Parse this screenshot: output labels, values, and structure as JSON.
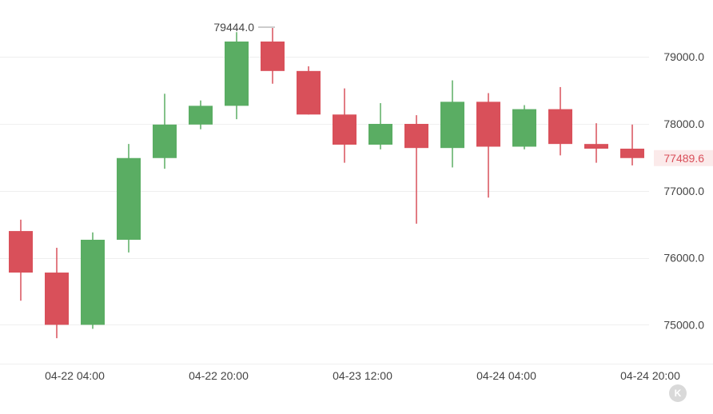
{
  "colors": {
    "up": "#5aad63",
    "down": "#d9505a",
    "grid": "#efefef",
    "axis_text": "#444444",
    "price_tag_text": "#d9505a",
    "price_tag_bg": "#fbeaea",
    "badge": "#d9d9d9"
  },
  "badge_label": "K",
  "chart_data": {
    "type": "candlestick",
    "y_axis_position": "right",
    "y_ticks": [
      "79000.0",
      "78000.0",
      "77000.0",
      "76000.0",
      "75000.0"
    ],
    "y_tick_values": [
      79000,
      78000,
      77000,
      76000,
      75000
    ],
    "ylim": [
      74420,
      79850
    ],
    "x_tick_labels": [
      "04-22 04:00",
      "04-22 20:00",
      "04-23 12:00",
      "04-24 04:00",
      "04-24 20:00"
    ],
    "x_tick_candle_index": [
      1.5,
      5.5,
      9.5,
      13.5,
      17.5
    ],
    "grid": true,
    "candles": [
      {
        "open": 76400,
        "high": 76570,
        "low": 75360,
        "close": 75780
      },
      {
        "open": 75780,
        "high": 76150,
        "low": 74800,
        "close": 75000
      },
      {
        "open": 75000,
        "high": 76380,
        "low": 74940,
        "close": 76270
      },
      {
        "open": 76270,
        "high": 77700,
        "low": 76080,
        "close": 77490
      },
      {
        "open": 77490,
        "high": 78450,
        "low": 77330,
        "close": 77990
      },
      {
        "open": 77990,
        "high": 78350,
        "low": 77920,
        "close": 78270
      },
      {
        "open": 78270,
        "high": 79370,
        "low": 78070,
        "close": 79230
      },
      {
        "open": 79230,
        "high": 79444,
        "low": 78600,
        "close": 78790
      },
      {
        "open": 78790,
        "high": 78860,
        "low": 78140,
        "close": 78140
      },
      {
        "open": 78140,
        "high": 78530,
        "low": 77420,
        "close": 77690
      },
      {
        "open": 77690,
        "high": 78310,
        "low": 77620,
        "close": 78000
      },
      {
        "open": 78000,
        "high": 78130,
        "low": 76510,
        "close": 77640
      },
      {
        "open": 77640,
        "high": 78650,
        "low": 77350,
        "close": 78330
      },
      {
        "open": 78330,
        "high": 78460,
        "low": 76900,
        "close": 77660
      },
      {
        "open": 77660,
        "high": 78280,
        "low": 77620,
        "close": 78220
      },
      {
        "open": 78220,
        "high": 78550,
        "low": 77530,
        "close": 77700
      },
      {
        "open": 77700,
        "high": 78010,
        "low": 77420,
        "close": 77630
      },
      {
        "open": 77630,
        "high": 77990,
        "low": 77380,
        "close": 77490
      }
    ],
    "annotations": [
      {
        "text": "79444.0",
        "value": 79444,
        "candle_index": 7
      }
    ],
    "last_price": {
      "text": "77489.6",
      "value": 77489.6
    }
  }
}
